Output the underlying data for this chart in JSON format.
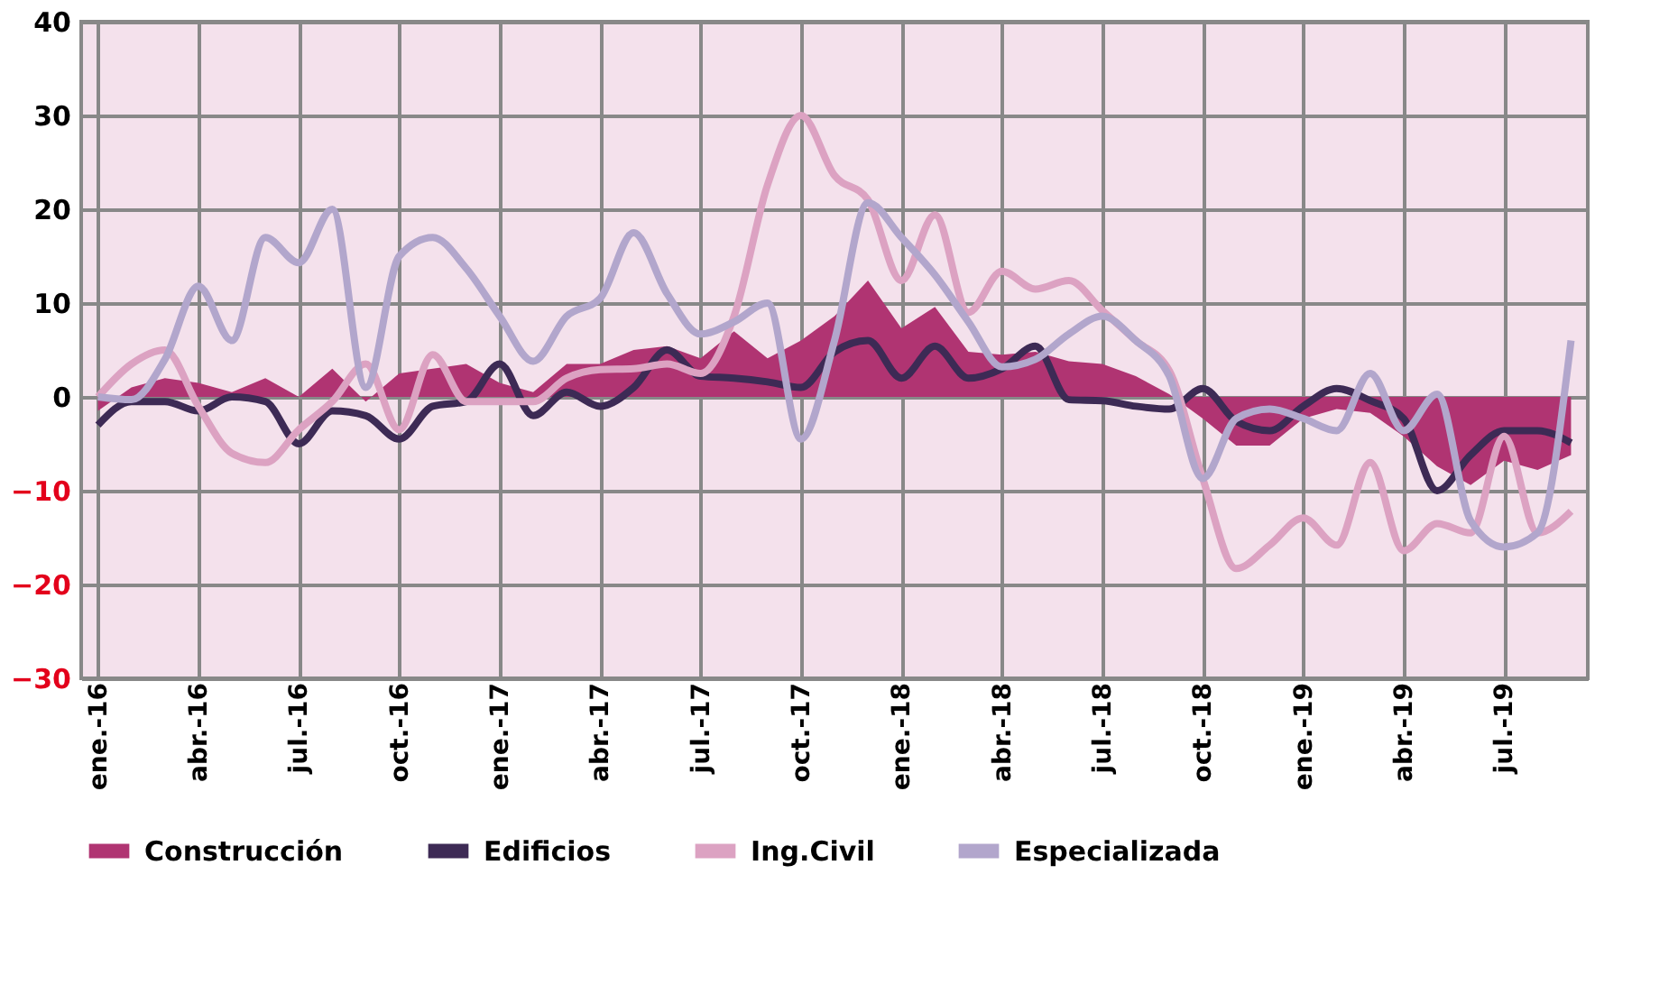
{
  "chart_data": {
    "type": "line",
    "categories": [
      "ene.-16",
      null,
      null,
      "abr.-16",
      null,
      null,
      "jul.-16",
      null,
      null,
      "oct.-16",
      null,
      null,
      "ene.-17",
      null,
      null,
      "abr.-17",
      null,
      null,
      "jul.-17",
      null,
      null,
      "oct.-17",
      null,
      null,
      "ene.-18",
      null,
      null,
      "abr.-18",
      null,
      null,
      "jul.-18",
      null,
      null,
      "oct.-18",
      null,
      null,
      "ene.-19",
      null,
      null,
      "abr.-19",
      null,
      null,
      "jul.-19",
      null,
      null
    ],
    "series": [
      {
        "name": "Construcción",
        "type": "area",
        "color": "#b03472",
        "values": [
          -1.5,
          1,
          2,
          1.5,
          0.5,
          2,
          0,
          3,
          -0.5,
          2.5,
          3,
          3.5,
          1.5,
          0.5,
          3.5,
          3.5,
          5,
          5.4,
          4.1,
          7,
          4.1,
          6,
          8.6,
          12.4,
          7.3,
          9.6,
          4.8,
          4.5,
          4.8,
          3.8,
          3.5,
          2.2,
          0.3,
          -2.3,
          -5.2,
          -5.2,
          -2.3,
          -1.3,
          -1.7,
          -4.2,
          -7.4,
          -9.4,
          -6.8,
          -7.8,
          -6.2
        ]
      },
      {
        "name": "Edificios",
        "color": "#3d2a55",
        "values": [
          -3,
          -0.5,
          -0.5,
          -1.5,
          0,
          -0.5,
          -5,
          -1.5,
          -2,
          -4.5,
          -1,
          -0.5,
          3.5,
          -2,
          0.5,
          -1,
          1,
          5,
          2.2,
          2,
          1.6,
          1,
          4.8,
          6,
          2,
          5.4,
          2,
          3,
          5.4,
          -0.3,
          -0.4,
          -1,
          -1.3,
          0.9,
          -2.6,
          -3.6,
          -1,
          0.9,
          -0.4,
          -2.3,
          -10,
          -6.2,
          -3.6,
          -3.6,
          -4.9
        ]
      },
      {
        "name": "Ing.Civil",
        "color": "#dca2c2",
        "values": [
          0,
          3.5,
          5,
          -1,
          -6,
          -7,
          -3.5,
          -0.5,
          3.5,
          -3.5,
          4.5,
          -0.5,
          -0.5,
          -0.5,
          2,
          2.9,
          3,
          3.5,
          2.5,
          8.6,
          22.6,
          30,
          23.6,
          21,
          12.4,
          19.4,
          9,
          13.4,
          11.5,
          12.4,
          9.2,
          6,
          2.8,
          -8.7,
          -18.3,
          -15.8,
          -12.9,
          -15.8,
          -7,
          -16.4,
          -13.5,
          -14.5,
          -4.2,
          -14.5,
          -12.2
        ]
      },
      {
        "name": "Especializada",
        "color": "#b2a6cc",
        "values": [
          0,
          -0.3,
          4,
          11.8,
          6,
          17,
          14.3,
          20,
          1,
          15,
          17,
          13.7,
          8.6,
          3.8,
          8.6,
          10.5,
          17.5,
          11,
          6.7,
          8,
          10,
          -4.5,
          6,
          20.7,
          17,
          13,
          8,
          3.2,
          4,
          6.7,
          8.6,
          6,
          2.2,
          -8.7,
          -2.3,
          -1.3,
          -2.3,
          -3.6,
          2.5,
          -3.6,
          0.3,
          -13.2,
          -16,
          -14.5,
          6
        ]
      }
    ],
    "ylim": [
      -30,
      40
    ],
    "yticks": [
      -30,
      -20,
      -10,
      0,
      10,
      20,
      30,
      40
    ],
    "grid": true,
    "legend": "bottom",
    "marker": "none"
  }
}
